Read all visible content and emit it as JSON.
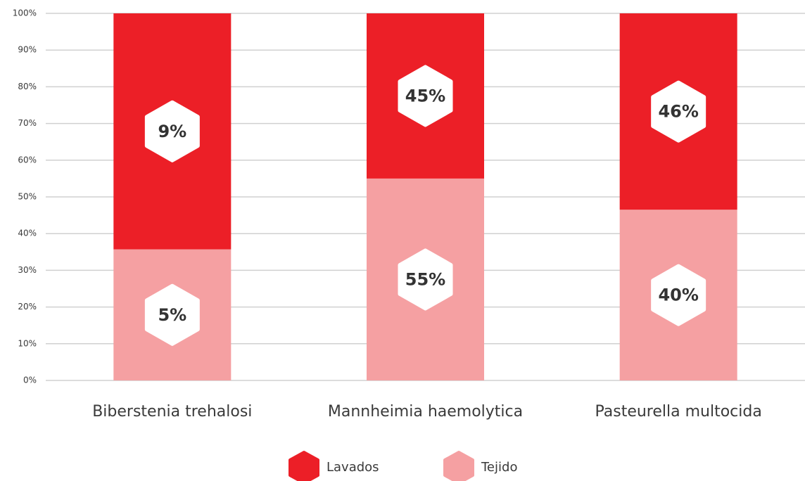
{
  "chart_data": {
    "type": "stacked100",
    "categories": [
      "Biberstenia trehalosi",
      "Mannheimia haemolytica",
      "Pasteurella multocida"
    ],
    "series": [
      {
        "name": "Tejido",
        "color": "#f5a0a2",
        "values": [
          5,
          55,
          40
        ],
        "value_labels": [
          "5%",
          "55%",
          "40%"
        ]
      },
      {
        "name": "Lavados",
        "color": "#ec1f27",
        "values": [
          9,
          45,
          46
        ],
        "value_labels": [
          "9%",
          "45%",
          "46%"
        ]
      }
    ],
    "ylim": [
      0,
      100
    ],
    "yticks": [
      {
        "value": 0,
        "label": "0%"
      },
      {
        "value": 10,
        "label": "10%"
      },
      {
        "value": 20,
        "label": "20%"
      },
      {
        "value": 30,
        "label": "30%"
      },
      {
        "value": 40,
        "label": "40%"
      },
      {
        "value": 50,
        "label": "50%"
      },
      {
        "value": 60,
        "label": "60%"
      },
      {
        "value": 70,
        "label": "70%"
      },
      {
        "value": 80,
        "label": "80%"
      },
      {
        "value": 90,
        "label": "90%"
      },
      {
        "value": 100,
        "label": "100%"
      }
    ],
    "grid": true
  }
}
